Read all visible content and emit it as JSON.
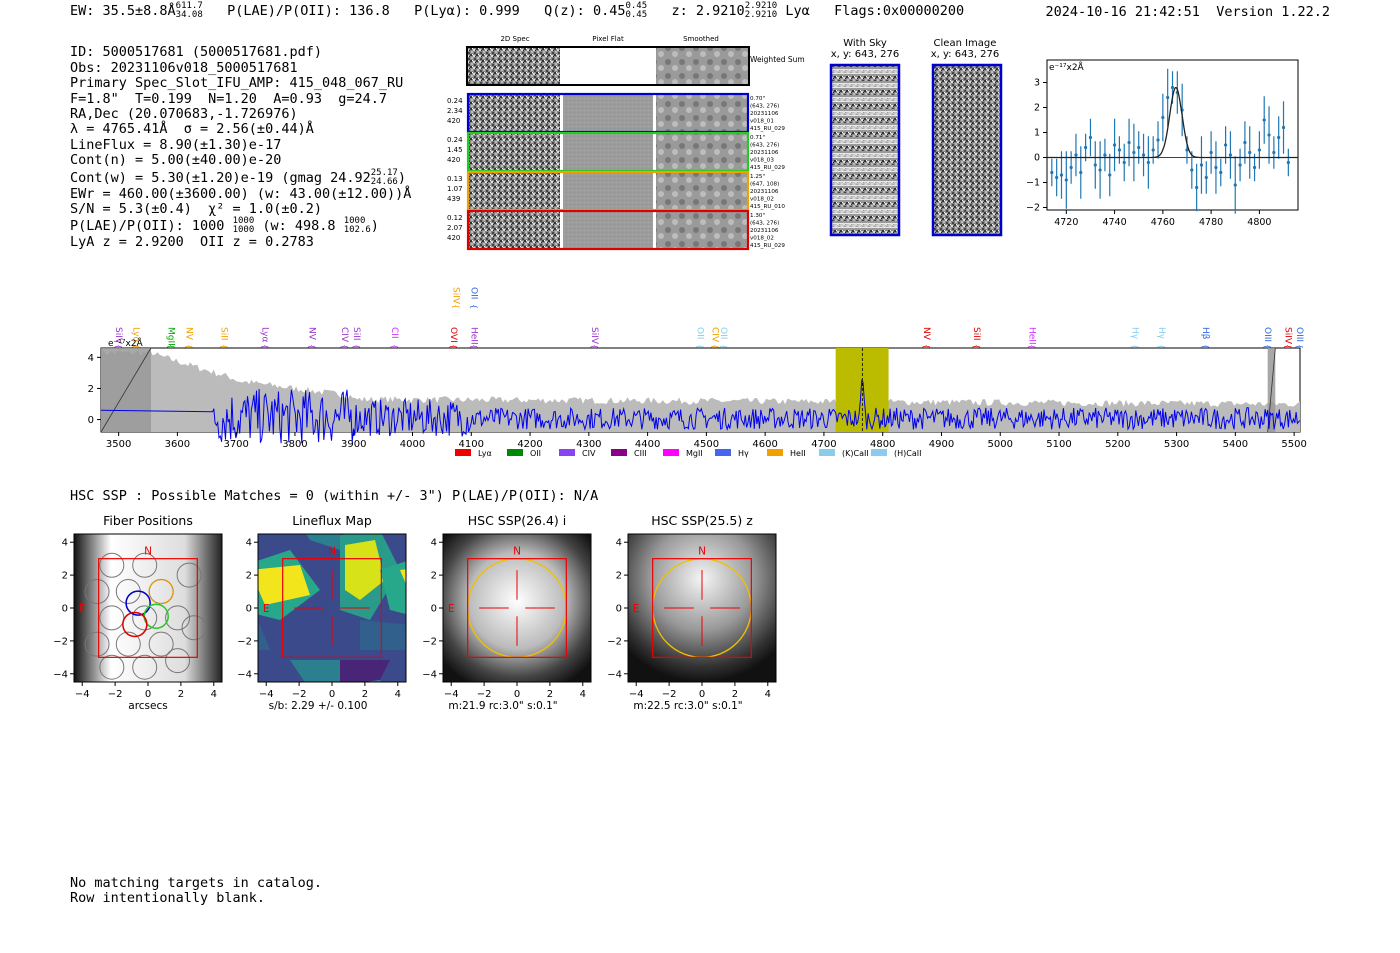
{
  "header": {
    "ew": "EW: 35.5±8.8Å",
    "ew_sup": "611.7",
    "ew_sub": "34.08",
    "plae_label": "P(LAE)/P(OII): 136.8",
    "plya": "P(Lyα): 0.999",
    "qz": "Q(z): 0.45",
    "qz_sup": "0.45",
    "qz_sub": "0.45",
    "z": "z: 2.9210",
    "z_sup": "2.9210",
    "z_sub": "2.9210",
    "line": "Lyα",
    "flags": "Flags:0x00000200",
    "datetime": "2024-10-16 21:42:51",
    "version": "Version 1.22.2"
  },
  "info": {
    "id": "ID: 5000517681 (5000517681.pdf)",
    "obs": "Obs: 20231106v018_5000517681",
    "primary": "Primary Spec_Slot_IFU_AMP: 415_048_067_RU",
    "fit": "F=1.8\"  T=0.199  N=1.20  A=0.93  g=24.7",
    "radec": "RA,Dec (20.070683,-1.726976)",
    "lambda": "λ = 4765.41Å  σ = 2.56(±0.44)Å",
    "lineflux": "LineFlux = 8.90(±1.30)e-17",
    "contn": "Cont(n) = 5.00(±40.00)e-20",
    "contw": "Cont(w) = 5.30(±1.20)e-19 (gmag 24.92",
    "contw_sup": "25.17",
    "contw_sub": "24.66",
    "ewr": "EWr = 460.00(±3600.00) (w: 43.00(±12.00))Å",
    "sn": "S/N = 5.3(±0.4)  χ² = 1.0(±0.2)",
    "plae": "P(LAE)/P(OII): 1000",
    "plae_frac_top": "1000",
    "plae_frac_bot": "1000",
    "plae_w": "(w: 498.8",
    "plae_w_top": "1000",
    "plae_w_bot": "102.6",
    "lyaz": "LyA z = 2.9200  OII z = 0.2783"
  },
  "cutouts": {
    "col_2d": "2D Spec",
    "col_flat": "Pixel Flat",
    "col_smooth": "Smoothed",
    "weighted": "Weighted Sum",
    "rows": [
      {
        "left": [
          "0.24",
          "2.34",
          "420"
        ],
        "right": [
          "0.70\"",
          "(643, 276)",
          "20231106",
          "v018_01",
          "415_RU_029"
        ],
        "color": "#0000cc"
      },
      {
        "left": [
          "0.24",
          "1.45",
          "420"
        ],
        "right": [
          "0.71\"",
          "(643, 276)",
          "20231106",
          "v018_03",
          "415_RU_029"
        ],
        "color": "#22cc22"
      },
      {
        "left": [
          "0.13",
          "1.07",
          "439"
        ],
        "right": [
          "1.25\"",
          "(647, 108)",
          "20231106",
          "v018_02",
          "415_RU_010"
        ],
        "color": "#f0a000"
      },
      {
        "left": [
          "0.12",
          "2.07",
          "420"
        ],
        "right": [
          "1.30\"",
          "(643, 276)",
          "20231106",
          "v018_02",
          "415_RU_029"
        ],
        "color": "#dd0000"
      }
    ]
  },
  "sky_panels": {
    "with_sky_title": "With Sky",
    "with_sky_xy": "x, y: 643, 276",
    "clean_title": "Clean Image",
    "clean_xy": "x, y: 643, 276"
  },
  "chart_data": [
    {
      "type": "line",
      "name": "zoom-line-fit",
      "ylabel": "e⁻¹⁷x2Å",
      "xlim": [
        4712,
        4816
      ],
      "ylim": [
        -2.1,
        3.9
      ],
      "xticks": [
        4720,
        4740,
        4760,
        4780,
        4800
      ],
      "yticks": [
        -2,
        -1,
        0,
        1,
        2,
        3
      ],
      "points_x": [
        4714,
        4716,
        4718,
        4720,
        4722,
        4724,
        4726,
        4728,
        4730,
        4732,
        4734,
        4736,
        4738,
        4740,
        4742,
        4744,
        4746,
        4748,
        4750,
        4752,
        4754,
        4756,
        4758,
        4760,
        4762,
        4764,
        4766,
        4768,
        4770,
        4772,
        4774,
        4776,
        4778,
        4780,
        4782,
        4784,
        4786,
        4788,
        4790,
        4792,
        4794,
        4796,
        4798,
        4800,
        4802,
        4804,
        4806,
        4808,
        4810,
        4812
      ],
      "points_y": [
        -0.6,
        -0.8,
        -0.7,
        -0.9,
        -0.4,
        0.1,
        -0.6,
        0.4,
        0.8,
        -0.3,
        -0.5,
        0.1,
        -0.7,
        0.5,
        0.3,
        -0.2,
        0.6,
        0.2,
        0.4,
        0.1,
        -0.2,
        0.3,
        0.7,
        1.6,
        2.4,
        2.8,
        2.6,
        1.9,
        0.3,
        -0.5,
        -1.2,
        -0.3,
        -0.8,
        0.2,
        -0.4,
        -0.6,
        0.5,
        0.1,
        -1.1,
        -0.3,
        0.6,
        0.2,
        -0.4,
        0.3,
        1.5,
        0.9,
        0.2,
        0.8,
        1.2,
        -0.2
      ],
      "fit_center": 4765.4,
      "fit_sigma": 2.56,
      "fit_amp": 2.8
    },
    {
      "type": "line",
      "name": "full-spectrum",
      "ylabel": "e⁻¹⁷x2Å",
      "xlim": [
        3470,
        5510
      ],
      "ylim": [
        -0.8,
        4.6
      ],
      "xticks": [
        3500,
        3600,
        3700,
        3800,
        3900,
        4000,
        4100,
        4200,
        4300,
        4400,
        4500,
        4600,
        4700,
        4800,
        4900,
        5000,
        5100,
        5200,
        5300,
        5400,
        5500
      ],
      "yticks": [
        0,
        2,
        4
      ],
      "highlight_range": [
        4720,
        4810
      ],
      "line_marker": 4765.4,
      "mask_ranges": [
        [
          3470,
          3555
        ],
        [
          5455,
          5468
        ]
      ],
      "emission_labels": [
        {
          "x": 3490,
          "label": "SiIV",
          "color": "#9933cc"
        },
        {
          "x": 3520,
          "label": "Lyα",
          "color": "#f0a000"
        },
        {
          "x": 3580,
          "label": "MgII",
          "color": "#00aa00"
        },
        {
          "x": 3610,
          "label": "NV",
          "color": "#f0a000"
        },
        {
          "x": 3670,
          "label": "SiII",
          "color": "#f0a000"
        },
        {
          "x": 3740,
          "label": "Lyα",
          "color": "#9933cc"
        },
        {
          "x": 3820,
          "label": "NV",
          "color": "#9933cc"
        },
        {
          "x": 3875,
          "label": "CIV",
          "color": "#9933cc"
        },
        {
          "x": 3895,
          "label": "SiII",
          "color": "#9933cc"
        },
        {
          "x": 3960,
          "label": "CII",
          "color": "#cc33ff"
        },
        {
          "x": 4060,
          "label": "OVI",
          "color": "#dd0000"
        },
        {
          "x": 4095,
          "label": "HeII",
          "color": "#9933cc"
        },
        {
          "x": 4065,
          "label": "SiIV",
          "color": "#f0a000",
          "high": true
        },
        {
          "x": 4095,
          "label": "OII",
          "color": "#3366dd",
          "high": true
        },
        {
          "x": 4300,
          "label": "SiIV",
          "color": "#9933cc"
        },
        {
          "x": 4480,
          "label": "OII",
          "color": "#88ccee"
        },
        {
          "x": 4505,
          "label": "CIV",
          "color": "#f0a000"
        },
        {
          "x": 4520,
          "label": "OII",
          "color": "#88ccee"
        },
        {
          "x": 4865,
          "label": "NV",
          "color": "#dd0000"
        },
        {
          "x": 4950,
          "label": "SiII",
          "color": "#dd0000"
        },
        {
          "x": 5045,
          "label": "HeII",
          "color": "#cc33ff"
        },
        {
          "x": 5220,
          "label": "Hγ",
          "color": "#88ccee"
        },
        {
          "x": 5265,
          "label": "Hγ",
          "color": "#88ccee"
        },
        {
          "x": 5340,
          "label": "Hβ",
          "color": "#3366dd"
        },
        {
          "x": 5445,
          "label": "OIII",
          "color": "#3366dd"
        },
        {
          "x": 5480,
          "label": "SiIV",
          "color": "#dd0000"
        },
        {
          "x": 5500,
          "label": "OIII",
          "color": "#3366dd"
        }
      ],
      "legend": [
        {
          "label": "Lyα",
          "color": "#ee0000"
        },
        {
          "label": "OII",
          "color": "#008800"
        },
        {
          "label": "CIV",
          "color": "#8844ee"
        },
        {
          "label": "CIII",
          "color": "#880088"
        },
        {
          "label": "MgII",
          "color": "#ff00ff"
        },
        {
          "label": "Hγ",
          "color": "#4466ee"
        },
        {
          "label": "HeII",
          "color": "#f0a000"
        },
        {
          "label": "(K)CaII",
          "color": "#88ccee"
        },
        {
          "label": "(H)CaII",
          "color": "#88ccee"
        }
      ]
    }
  ],
  "hsc": {
    "line": "HSC SSP : Possible Matches = 0 (within +/- 3\")  P(LAE)/P(OII): N/A",
    "panels": [
      {
        "title": "Fiber Positions",
        "caption": "arcsecs"
      },
      {
        "title": "Lineflux Map",
        "caption": "s/b: 2.29 +/- 0.100"
      },
      {
        "title": "HSC SSP(26.4) i",
        "caption": "m:21.9 rc:3.0\"  s:0.1\""
      },
      {
        "title": "HSC SSP(25.5) z",
        "caption": "m:22.5 rc:3.0\"  s:0.1\""
      }
    ],
    "north": "N",
    "east": "E",
    "ticks": [
      "4",
      "2",
      "0",
      "−2",
      "−4"
    ]
  },
  "footer": {
    "line1": "No matching targets in catalog.",
    "line2": "Row intentionally blank."
  }
}
